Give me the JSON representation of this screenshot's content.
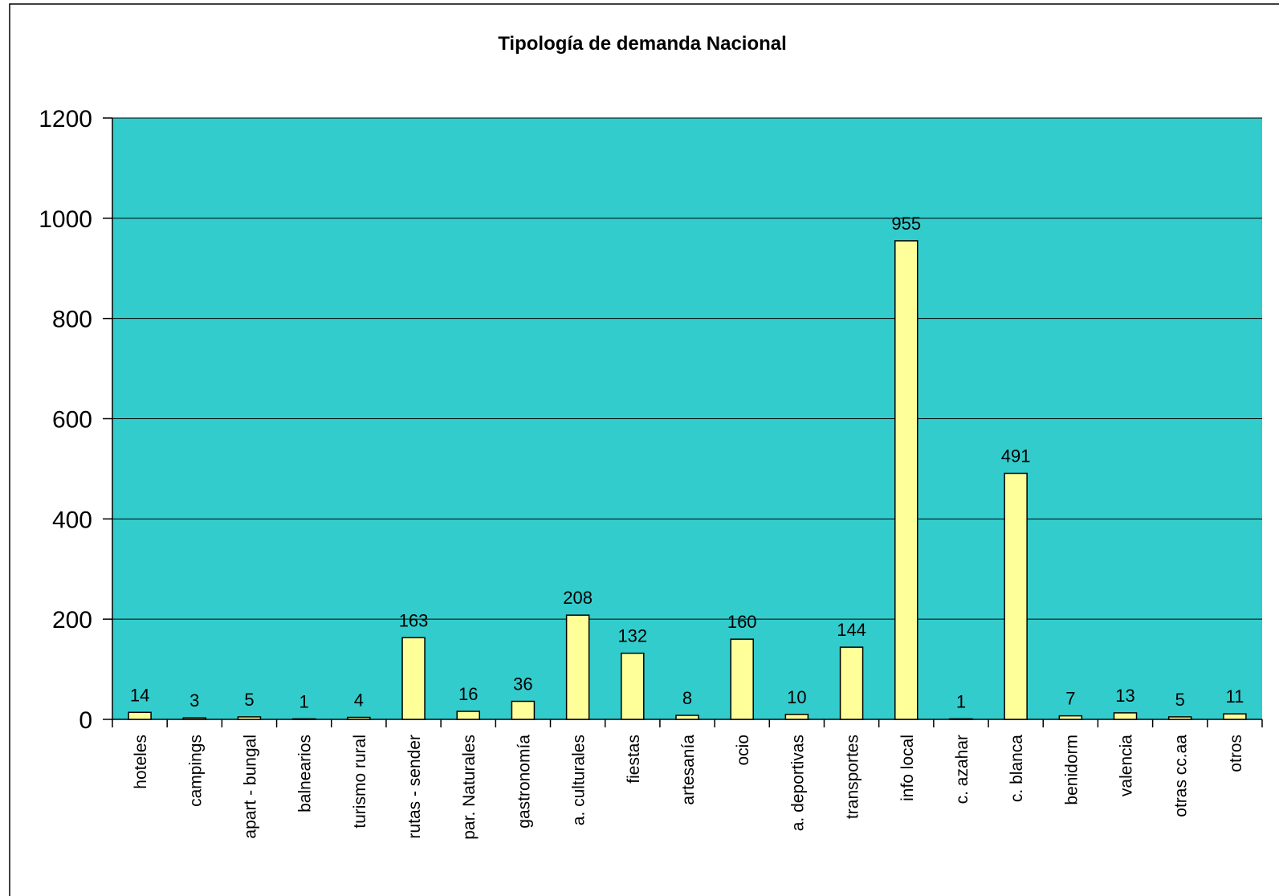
{
  "chart_data": {
    "type": "bar",
    "title": "Tipología de demanda Nacional",
    "categories": [
      "hoteles",
      "campings",
      "apart - bungal",
      "balnearios",
      "turismo rural",
      "rutas - sender",
      "par. Naturales",
      "gastronomía",
      "a. culturales",
      "fiestas",
      "artesanía",
      "ocio",
      "a. deportivas",
      "transportes",
      "info local",
      "c. azahar",
      "c. blanca",
      "benidorm",
      "valencia",
      "otras cc.aa",
      "otros"
    ],
    "values": [
      14,
      3,
      5,
      1,
      4,
      163,
      16,
      36,
      208,
      132,
      8,
      160,
      10,
      144,
      955,
      1,
      491,
      7,
      13,
      5,
      11
    ],
    "color": "#ffff99",
    "plot_background": "#33cccc",
    "ylim": [
      0,
      1200
    ],
    "yticks": [
      0,
      200,
      400,
      600,
      800,
      1000,
      1200
    ],
    "grid": true
  }
}
